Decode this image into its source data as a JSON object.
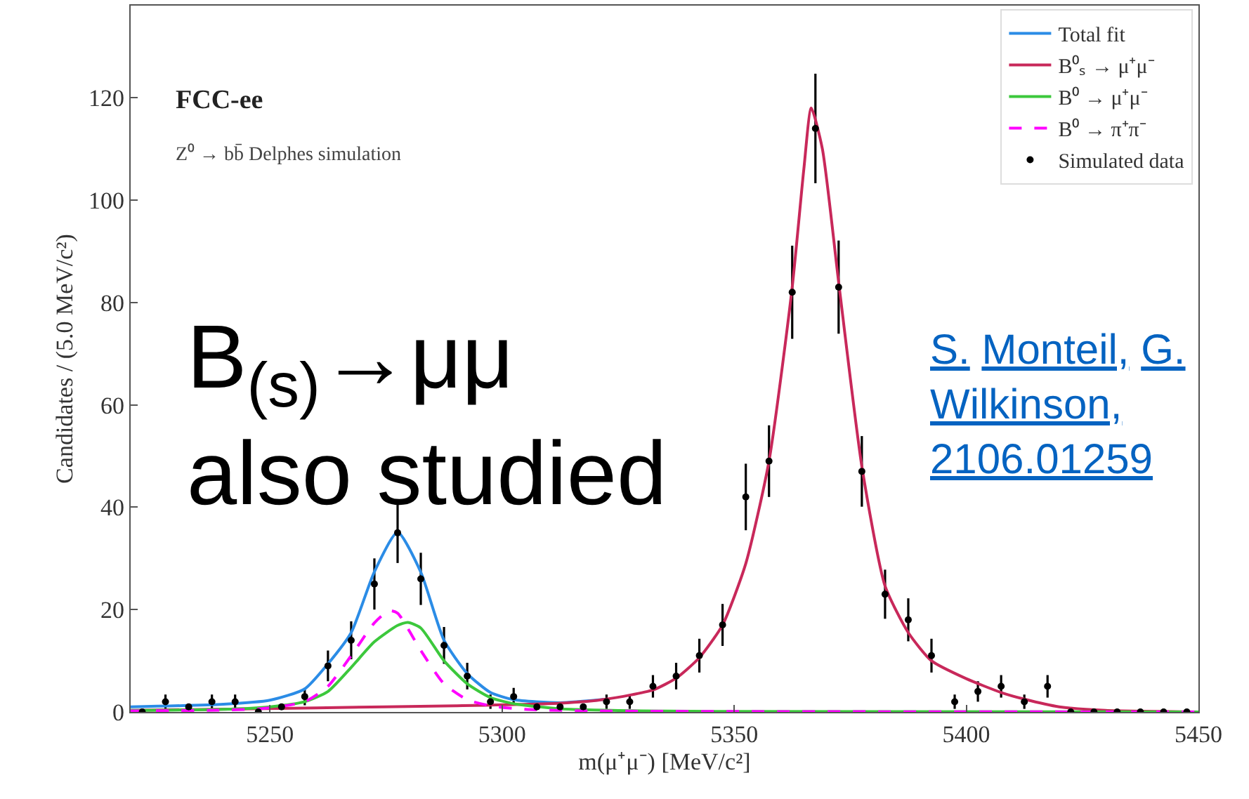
{
  "chart_data": {
    "type": "scatter",
    "xlabel": "m(μ⁺μ⁻) [MeV/c²]",
    "ylabel": "Candidates / (5.0 MeV/c²)",
    "xlim": [
      5220,
      5450
    ],
    "xticks": [
      5250,
      5300,
      5350,
      5400,
      5450
    ],
    "ylim": [
      0,
      138
    ],
    "yticks": [
      0,
      20,
      40,
      60,
      80,
      100,
      120
    ],
    "legend": "top right",
    "annotations": [
      "FCC-ee",
      "Z⁰ → bb̄ Delphes simulation",
      "B$_{(s)}$→μμ also studied",
      "S. Monteil, G. Wilkinson, 2106.01259"
    ],
    "series": [
      {
        "name": "Total fit",
        "type": "line",
        "color": "#2b8ce6",
        "marker": "none",
        "line_style": "solid",
        "x": [
          5220,
          5240,
          5250,
          5257.5,
          5262.5,
          5267.5,
          5272.5,
          5277.5,
          5282.5,
          5287.5,
          5292.5,
          5297.5,
          5302.5,
          5312.5,
          5322.5
        ],
        "values": [
          1.0,
          1.5,
          2.3,
          4.5,
          9.4,
          15.5,
          27.4,
          35.1,
          27.3,
          14,
          7.5,
          3.8,
          2.4,
          1.8,
          2.5
        ]
      },
      {
        "name": "B⁰ₛ → μ⁺μ⁻",
        "type": "line",
        "color": "#c8285a",
        "marker": "none",
        "line_style": "solid",
        "x": [
          5220,
          5260,
          5290,
          5312.5,
          5322.5,
          5332.5,
          5337.5,
          5342.5,
          5347.5,
          5352.5,
          5357.5,
          5362.5,
          5365,
          5366.6,
          5369,
          5372.5,
          5377.5,
          5382.5,
          5387.5,
          5392.5,
          5400,
          5407.5,
          5412.5,
          5420,
          5430,
          5450
        ],
        "values": [
          0.3,
          0.8,
          1.2,
          1.7,
          2.5,
          4.3,
          6.6,
          10.6,
          17,
          29,
          49,
          83,
          106,
          118,
          110,
          84,
          48,
          24.6,
          15.5,
          10,
          6.5,
          3.8,
          2.5,
          1,
          0.3,
          0
        ]
      },
      {
        "name": "B⁰ → μ⁺μ⁻",
        "type": "line",
        "color": "#3cc83c",
        "marker": "none",
        "line_style": "solid",
        "x": [
          5220,
          5240,
          5250,
          5257.5,
          5262.5,
          5267.5,
          5272.5,
          5277.5,
          5279.7,
          5282.5,
          5287.5,
          5292.5,
          5297.5,
          5302.5,
          5312.5,
          5330,
          5350,
          5450
        ],
        "values": [
          0.3,
          0.5,
          1,
          2,
          4,
          8.7,
          13.7,
          16.9,
          17.5,
          16.4,
          10,
          5.5,
          2.8,
          1.6,
          0.6,
          0.2,
          0.1,
          0
        ]
      },
      {
        "name": "B⁰ → π⁺π⁻",
        "type": "line",
        "color": "#ff00ff",
        "marker": "none",
        "line_style": "dashed",
        "x": [
          5220,
          5247.5,
          5257.5,
          5262.5,
          5267.5,
          5272.5,
          5275.7,
          5277.5,
          5282.5,
          5287.5,
          5292.5,
          5297.5,
          5305,
          5320,
          5450
        ],
        "values": [
          0.2,
          0.6,
          2,
          5,
          11,
          17.4,
          19.8,
          19.3,
          12,
          5.5,
          2.4,
          1.2,
          0.5,
          0.2,
          0
        ]
      },
      {
        "name": "Simulated data",
        "color": "#000000",
        "marker": "circle",
        "x": [
          5222.5,
          5227.5,
          5232.5,
          5237.5,
          5242.5,
          5247.5,
          5252.5,
          5257.5,
          5262.5,
          5267.5,
          5272.5,
          5277.5,
          5282.5,
          5287.5,
          5292.5,
          5297.5,
          5302.5,
          5307.5,
          5312.5,
          5317.5,
          5322.5,
          5327.5,
          5332.5,
          5337.5,
          5342.5,
          5347.5,
          5352.5,
          5357.5,
          5362.5,
          5367.5,
          5372.5,
          5377.5,
          5382.5,
          5387.5,
          5392.5,
          5397.5,
          5402.5,
          5407.5,
          5412.5,
          5417.5,
          5422.5,
          5427.5,
          5432.5,
          5437.5,
          5442.5,
          5447.5
        ],
        "values": [
          0,
          2,
          1,
          2,
          2,
          0,
          1,
          3,
          9,
          14,
          25,
          35,
          26,
          13,
          7,
          2,
          3,
          1,
          1,
          1,
          2,
          2,
          5,
          7,
          11,
          17,
          42,
          49,
          82,
          114,
          83,
          47,
          23,
          18,
          11,
          2,
          4,
          5,
          2,
          5,
          0,
          0,
          0,
          0,
          0,
          0
        ],
        "errors": [
          null,
          1.4,
          null,
          1.4,
          1.4,
          null,
          null,
          1.7,
          3,
          3.7,
          5,
          5.9,
          5.1,
          3.6,
          2.6,
          1.4,
          1.7,
          null,
          null,
          null,
          1.4,
          1.4,
          2.2,
          2.6,
          3.3,
          4.1,
          6.5,
          7,
          9.1,
          10.7,
          9.1,
          6.9,
          4.8,
          4.2,
          3.3,
          1.4,
          2,
          2.2,
          1.4,
          2.2,
          null,
          null,
          null,
          null,
          null,
          null
        ]
      }
    ]
  }
}
